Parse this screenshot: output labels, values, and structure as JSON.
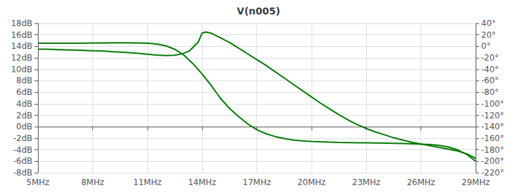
{
  "chart_data": {
    "type": "line",
    "title": "V(n005)",
    "grid": true,
    "xlim": [
      5,
      29
    ],
    "xticks": [
      {
        "value": 5,
        "label": "5MHz"
      },
      {
        "value": 8,
        "label": "8MHz"
      },
      {
        "value": 11,
        "label": "11MHz"
      },
      {
        "value": 14,
        "label": "14MHz"
      },
      {
        "value": 17,
        "label": "17MHz"
      },
      {
        "value": 20,
        "label": "20MHz"
      },
      {
        "value": 23,
        "label": "23MHz"
      },
      {
        "value": 26,
        "label": "26MHz"
      },
      {
        "value": 29,
        "label": "29MHz"
      }
    ],
    "ylim": [
      -8,
      18
    ],
    "yticks": [
      {
        "value": -8,
        "label": "-8dB"
      },
      {
        "value": -6,
        "label": "-6dB"
      },
      {
        "value": -4,
        "label": "-4dB"
      },
      {
        "value": -2,
        "label": "-2dB"
      },
      {
        "value": 0,
        "label": "0dB"
      },
      {
        "value": 2,
        "label": "2dB"
      },
      {
        "value": 4,
        "label": "4dB"
      },
      {
        "value": 6,
        "label": "6dB"
      },
      {
        "value": 8,
        "label": "8dB"
      },
      {
        "value": 10,
        "label": "10dB"
      },
      {
        "value": 12,
        "label": "12dB"
      },
      {
        "value": 14,
        "label": "14dB"
      },
      {
        "value": 16,
        "label": "16dB"
      },
      {
        "value": 18,
        "label": "18dB"
      }
    ],
    "y2lim": [
      -220,
      40
    ],
    "y2ticks": [
      {
        "value": -220,
        "label": "-220°"
      },
      {
        "value": -200,
        "label": "-200°"
      },
      {
        "value": -180,
        "label": "-180°"
      },
      {
        "value": -160,
        "label": "-160°"
      },
      {
        "value": -140,
        "label": "-140°"
      },
      {
        "value": -120,
        "label": "-120°"
      },
      {
        "value": -100,
        "label": "-100°"
      },
      {
        "value": -80,
        "label": "-80°"
      },
      {
        "value": -60,
        "label": "-60°"
      },
      {
        "value": -40,
        "label": "-40°"
      },
      {
        "value": -20,
        "label": "-20°"
      },
      {
        "value": 0,
        "label": "0°"
      },
      {
        "value": 20,
        "label": "20°"
      },
      {
        "value": 40,
        "label": "40°"
      }
    ],
    "series": [
      {
        "color": "#007700",
        "x": [
          5,
          5.5,
          6,
          6.5,
          7,
          7.5,
          8,
          8.5,
          9,
          9.5,
          10,
          10.5,
          11,
          11.5,
          12,
          12.5,
          13,
          13.3,
          13.5,
          13.8,
          14,
          14.2,
          14.5,
          15,
          15.5,
          16,
          16.5,
          17,
          17.5,
          18,
          18.5,
          19,
          19.5,
          20,
          20.5,
          21,
          21.5,
          22,
          22.5,
          23,
          23.5,
          24,
          24.5,
          25,
          25.5,
          26,
          26.5,
          27,
          27.5,
          28,
          28.5,
          29
        ],
        "values": [
          13.5,
          13.5,
          13.45,
          13.4,
          13.35,
          13.3,
          13.25,
          13.2,
          13.1,
          13.0,
          12.9,
          12.8,
          12.65,
          12.5,
          12.4,
          12.45,
          12.8,
          13.2,
          13.8,
          14.8,
          16.3,
          16.5,
          16.3,
          15.5,
          14.7,
          13.7,
          12.7,
          11.7,
          10.7,
          9.6,
          8.5,
          7.4,
          6.3,
          5.2,
          4.1,
          3.1,
          2.1,
          1.2,
          0.4,
          -0.3,
          -0.9,
          -1.4,
          -1.9,
          -2.3,
          -2.7,
          -3.0,
          -3.3,
          -3.6,
          -3.9,
          -4.2,
          -4.7,
          -5.5
        ]
      },
      {
        "color": "#007700",
        "axis": "y2",
        "x": [
          5,
          5.5,
          6,
          6.5,
          7,
          7.5,
          8,
          8.5,
          9,
          9.5,
          10,
          10.5,
          11,
          11.5,
          12,
          12.5,
          13,
          13.5,
          14,
          14.5,
          15,
          15.5,
          16,
          16.5,
          17,
          17.5,
          18,
          18.5,
          19,
          19.5,
          20,
          20.5,
          21,
          21.5,
          22,
          22.5,
          23,
          23.5,
          24,
          24.5,
          25,
          25.5,
          26,
          26.5,
          27,
          27.5,
          28,
          28.5,
          29
        ],
        "values": [
          5.5,
          5.5,
          5.5,
          5.5,
          5.5,
          5.7,
          5.9,
          6.0,
          6.1,
          6.1,
          6.1,
          6.0,
          5.5,
          4.0,
          1.0,
          -5.0,
          -15.0,
          -30.0,
          -48.0,
          -68.0,
          -90.0,
          -108.0,
          -122.0,
          -135.0,
          -145.0,
          -152.0,
          -157.0,
          -160.5,
          -163.0,
          -164.5,
          -165.5,
          -166.2,
          -166.8,
          -167.2,
          -167.5,
          -167.8,
          -168.0,
          -168.2,
          -168.5,
          -168.8,
          -169.2,
          -169.7,
          -170.3,
          -171.0,
          -172.5,
          -175.0,
          -180.0,
          -188.0,
          -200.0
        ]
      }
    ]
  }
}
